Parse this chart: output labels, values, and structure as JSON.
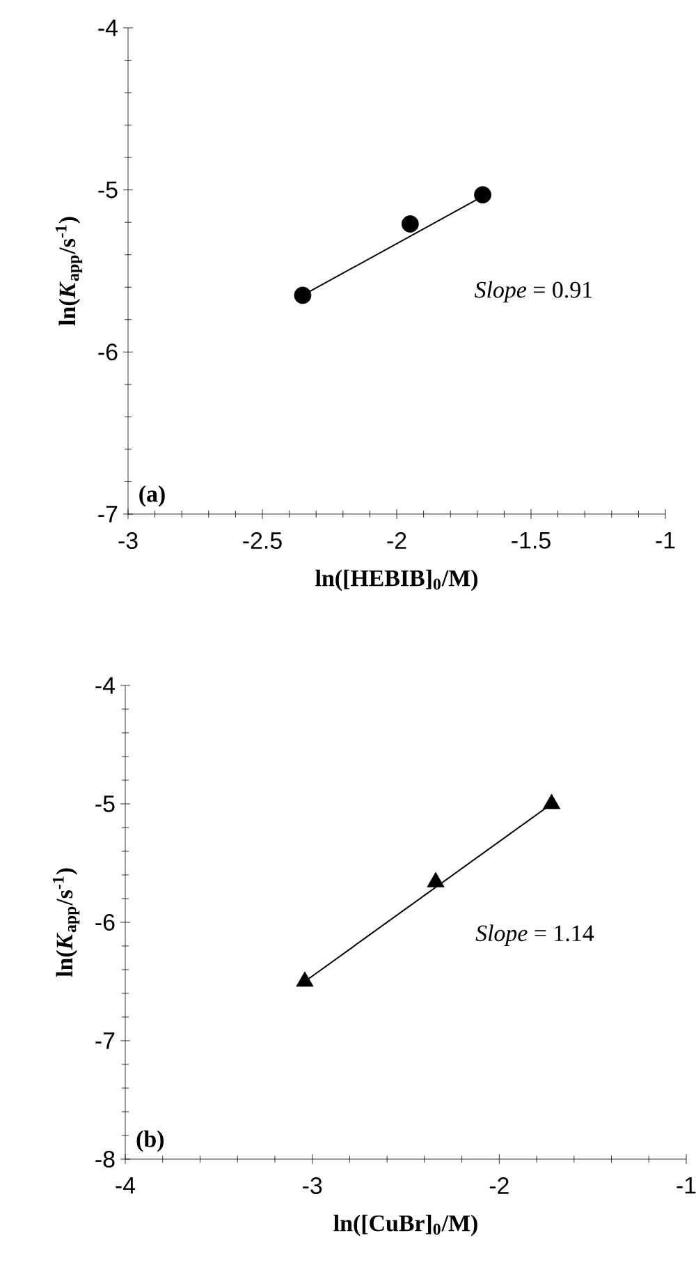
{
  "chart_data": [
    {
      "type": "scatter",
      "xlabel": "ln([HEBIB]$_{0}$/M)",
      "ylabel": "ln(*K*$_{app}$/s$^{-1}$)",
      "xlim": [
        -3,
        -1
      ],
      "ylim": [
        -7,
        -4
      ],
      "xticks": [
        -3,
        -2.5,
        -2,
        -1.5,
        -1
      ],
      "yticks": [
        -7,
        -6,
        -5,
        -4
      ],
      "annotations": [
        "(a)",
        "*Slope* = 0.91"
      ],
      "series": [
        {
          "marker": "circle",
          "color": "#000000",
          "x": [
            -2.35,
            -1.95,
            -1.68
          ],
          "values": [
            -5.65,
            -5.21,
            -5.03
          ]
        },
        {
          "type": "line",
          "marker": "none",
          "color": "#000000",
          "x": [
            -2.35,
            -1.68
          ],
          "values": [
            -5.65,
            -5.04
          ]
        }
      ]
    },
    {
      "type": "scatter",
      "xlabel": "ln([CuBr]$_{0}$/M)",
      "ylabel": "ln(*K*$_{app}$/s$^{-1}$)",
      "xlim": [
        -4,
        -1
      ],
      "ylim": [
        -8,
        -4
      ],
      "xticks": [
        -4,
        -3,
        -2,
        -1
      ],
      "yticks": [
        -8,
        -7,
        -6,
        -5,
        -4
      ],
      "annotations": [
        "(b)",
        "*Slope* = 1.14"
      ],
      "series": [
        {
          "marker": "triangle",
          "color": "#000000",
          "x": [
            -3.04,
            -2.34,
            -1.72
          ],
          "values": [
            -6.5,
            -5.66,
            -5.0
          ]
        },
        {
          "type": "line",
          "marker": "none",
          "color": "#000000",
          "x": [
            -3.04,
            -1.72
          ],
          "values": [
            -6.5,
            -5.0
          ]
        }
      ]
    }
  ]
}
